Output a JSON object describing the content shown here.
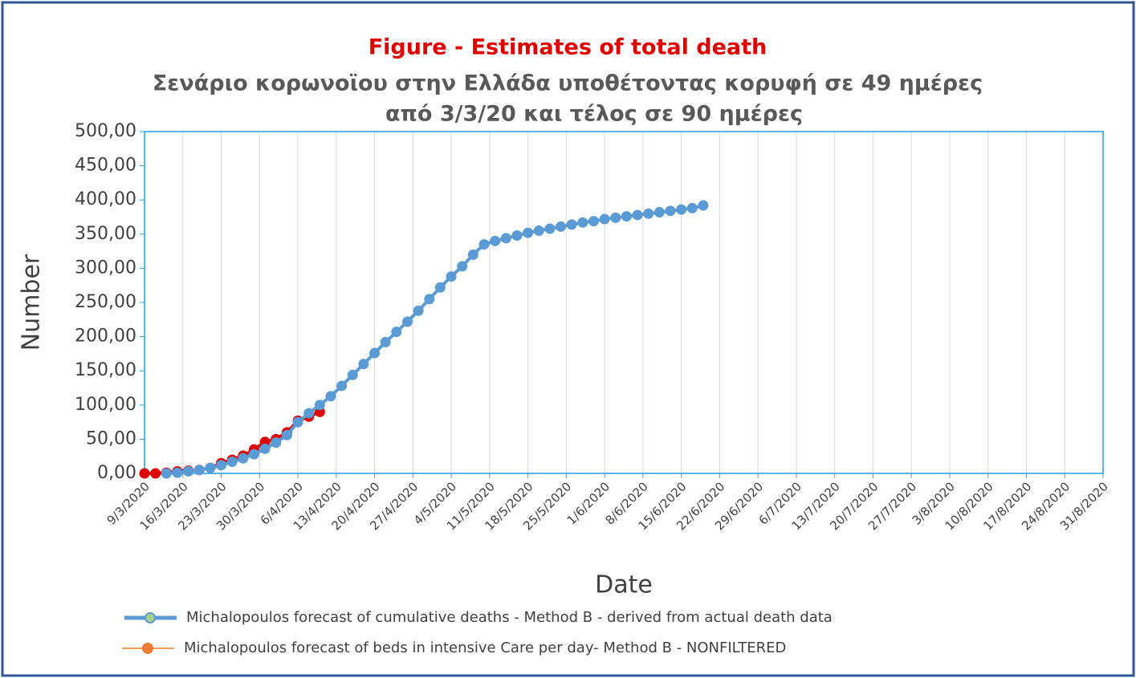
{
  "chart_data": {
    "type": "line",
    "title": "Figure  - Estimates of total death",
    "subtitle": [
      "Σενάριο κορωνοϊου στην Ελλάδα υποθέτοντας κορυφή σε  49 ημέρες",
      "από 3/3/20  και τέλος σε  90 ημέρες"
    ],
    "x_label": "Date",
    "y_label": "Number",
    "xlim": [
      "9/3/2020",
      "31/8/2020"
    ],
    "xticks": [
      "9/3/2020",
      "16/3/2020",
      "23/3/2020",
      "30/3/2020",
      "6/4/2020",
      "13/4/2020",
      "20/4/2020",
      "27/4/2020",
      "4/5/2020",
      "11/5/2020",
      "18/5/2020",
      "25/5/2020",
      "1/6/2020",
      "8/6/2020",
      "15/6/2020",
      "22/6/2020",
      "29/6/2020",
      "6/7/2020",
      "13/7/2020",
      "20/7/2020",
      "27/7/2020",
      "3/8/2020",
      "10/8/2020",
      "17/8/2020",
      "24/8/2020",
      "31/8/2020"
    ],
    "ylim": [
      0,
      500
    ],
    "yticks": [
      {
        "value": 0,
        "label": "0,00"
      },
      {
        "value": 50,
        "label": "50,00"
      },
      {
        "value": 100,
        "label": "100,00"
      },
      {
        "value": 150,
        "label": "150,00"
      },
      {
        "value": 200,
        "label": "200,00"
      },
      {
        "value": 250,
        "label": "250,00"
      },
      {
        "value": 300,
        "label": "300,00"
      },
      {
        "value": 350,
        "label": "350,00"
      },
      {
        "value": 400,
        "label": "400,00"
      },
      {
        "value": 450,
        "label": "450,00"
      },
      {
        "value": 500,
        "label": "500,00"
      }
    ],
    "grid": "x",
    "series": [
      {
        "name": "Michalopoulos forecast of cumulative deaths -  Method B - derived from actual death data",
        "color": "#5b9bd5",
        "x": [
          "13/3/2020",
          "15/3/2020",
          "17/3/2020",
          "19/3/2020",
          "21/3/2020",
          "23/3/2020",
          "25/3/2020",
          "27/3/2020",
          "29/3/2020",
          "31/3/2020",
          "2/4/2020",
          "4/4/2020",
          "6/4/2020",
          "8/4/2020",
          "10/4/2020",
          "12/4/2020",
          "14/4/2020",
          "16/4/2020",
          "18/4/2020",
          "20/4/2020",
          "22/4/2020",
          "24/4/2020",
          "26/4/2020",
          "28/4/2020",
          "30/4/2020",
          "2/5/2020",
          "4/5/2020",
          "6/5/2020",
          "8/5/2020",
          "10/5/2020",
          "12/5/2020",
          "14/5/2020",
          "16/5/2020",
          "18/5/2020",
          "20/5/2020",
          "22/5/2020",
          "24/5/2020",
          "26/5/2020",
          "28/5/2020",
          "30/5/2020",
          "1/6/2020",
          "3/6/2020",
          "5/6/2020",
          "7/6/2020",
          "9/6/2020",
          "11/6/2020",
          "13/6/2020",
          "15/6/2020",
          "17/6/2020",
          "19/6/2020"
        ],
        "values": [
          0,
          1,
          3,
          5,
          8,
          12,
          17,
          22,
          28,
          36,
          45,
          56,
          75,
          88,
          100,
          113,
          128,
          144,
          160,
          176,
          192,
          207,
          222,
          238,
          255,
          272,
          288,
          303,
          320,
          335,
          340,
          344,
          348,
          352,
          355,
          358,
          361,
          364,
          367,
          369,
          372,
          374,
          376,
          378,
          380,
          382,
          384,
          386,
          388,
          392
        ]
      },
      {
        "name": "Michalopoulos forecast of beds in intensive Care per day- Method B - NONFILTERED",
        "color": "#e00000",
        "legend_color": "#ed7d31",
        "x": [
          "9/3/2020",
          "11/3/2020",
          "13/3/2020",
          "15/3/2020",
          "17/3/2020",
          "19/3/2020",
          "21/3/2020",
          "23/3/2020",
          "25/3/2020",
          "27/3/2020",
          "29/3/2020",
          "31/3/2020",
          "2/4/2020",
          "4/4/2020",
          "6/4/2020",
          "8/4/2020",
          "10/4/2020"
        ],
        "values": [
          0,
          0,
          1,
          3,
          4,
          5,
          8,
          15,
          20,
          26,
          35,
          46,
          50,
          60,
          77,
          83,
          90
        ]
      }
    ]
  }
}
